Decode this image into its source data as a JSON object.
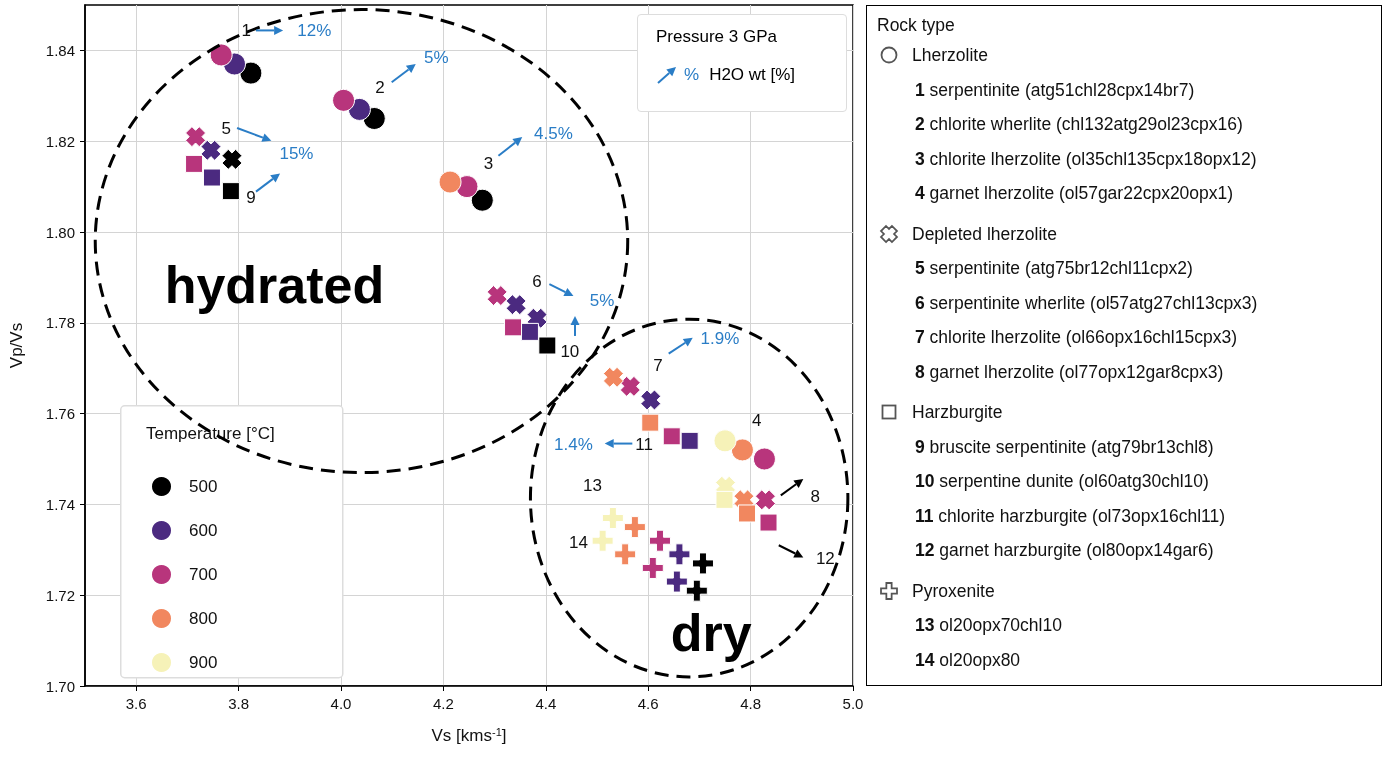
{
  "chart_data": {
    "type": "scatter",
    "xlabel": "Vs [kms$^{-1}$]",
    "ylabel": "Vp/Vs",
    "xlim": [
      3.5,
      5.0
    ],
    "xticks": [
      3.6,
      3.8,
      {
        "value": 4,
        "label": "4.0"
      },
      4.2,
      4.4,
      4.6,
      4.8,
      {
        "value": 5,
        "label": "5.0"
      }
    ],
    "ylim": [
      1.7,
      1.85
    ],
    "yticks": [
      {
        "value": 1.7,
        "label": "1.70"
      },
      1.72,
      1.74,
      1.76,
      1.78,
      {
        "value": 1.8,
        "label": "1.80"
      },
      1.82,
      1.84
    ],
    "grid": true,
    "legend": "bottom left",
    "legend_title": "Temperature [°C]",
    "series": [
      {
        "name": "500",
        "color": "#000000",
        "marker": "circle",
        "x": [
          3.824,
          4.065,
          4.276
        ],
        "values": [
          1.835,
          1.825,
          1.807
        ]
      },
      {
        "name": "600",
        "color": "#4b2a80",
        "marker": "circle",
        "x": [
          3.792,
          4.036
        ],
        "values": [
          1.837,
          1.827
        ]
      },
      {
        "name": "700",
        "color": "#b8357c",
        "marker": "circle",
        "x": [
          3.766,
          4.005,
          4.246,
          4.827
        ],
        "values": [
          1.839,
          1.829,
          1.81,
          1.75
        ]
      },
      {
        "name": "800",
        "color": "#f1875f",
        "marker": "circle",
        "x": [
          4.213,
          4.784
        ],
        "values": [
          1.811,
          1.752
        ]
      },
      {
        "name": "900",
        "color": "#f6f2b8",
        "marker": "circle",
        "x": [
          4.75
        ],
        "values": [
          1.754
        ]
      },
      {
        "color": "#000000",
        "marker": "x",
        "x": [
          3.787
        ],
        "values": [
          1.816
        ]
      },
      {
        "color": "#4b2a80",
        "marker": "x",
        "x": [
          3.746,
          4.342,
          4.383,
          4.605
        ],
        "values": [
          1.818,
          1.784,
          1.781,
          1.763
        ]
      },
      {
        "color": "#b8357c",
        "marker": "x",
        "x": [
          3.716,
          4.305,
          4.565,
          4.829
        ],
        "values": [
          1.821,
          1.786,
          1.766,
          1.741
        ]
      },
      {
        "color": "#f1875f",
        "marker": "x",
        "x": [
          4.532,
          4.787
        ],
        "values": [
          1.768,
          1.741
        ]
      },
      {
        "color": "#f6f2b8",
        "marker": "x",
        "x": [
          4.751
        ],
        "values": [
          1.744
        ]
      },
      {
        "color": "#000000",
        "marker": "square",
        "x": [
          3.785,
          4.403
        ],
        "values": [
          1.809,
          1.775
        ]
      },
      {
        "color": "#4b2a80",
        "marker": "square",
        "x": [
          3.748,
          4.369,
          4.681
        ],
        "values": [
          1.812,
          1.778,
          1.754
        ]
      },
      {
        "color": "#b8357c",
        "marker": "square",
        "x": [
          3.713,
          4.336,
          4.646,
          4.835
        ],
        "values": [
          1.815,
          1.779,
          1.755,
          1.736
        ]
      },
      {
        "color": "#f1875f",
        "marker": "square",
        "x": [
          4.604,
          4.793
        ],
        "values": [
          1.758,
          1.738
        ]
      },
      {
        "color": "#f6f2b8",
        "marker": "square",
        "x": [
          4.749
        ],
        "values": [
          1.741
        ]
      },
      {
        "color": "#000000",
        "marker": "cross",
        "x": [
          4.707,
          4.695
        ],
        "values": [
          1.727,
          1.721
        ]
      },
      {
        "color": "#4b2a80",
        "marker": "cross",
        "x": [
          4.661,
          4.656
        ],
        "values": [
          1.729,
          1.723
        ]
      },
      {
        "color": "#b8357c",
        "marker": "cross",
        "x": [
          4.623,
          4.609
        ],
        "values": [
          1.732,
          1.726
        ]
      },
      {
        "color": "#f1875f",
        "marker": "cross",
        "x": [
          4.574,
          4.555
        ],
        "values": [
          1.735,
          1.729
        ]
      },
      {
        "color": "#f6f2b8",
        "marker": "cross",
        "x": [
          4.531,
          4.511
        ],
        "values": [
          1.737,
          1.732
        ]
      }
    ],
    "annotations": [
      "Pressure 3 GPa",
      "%",
      "H2O wt [%]",
      "Rock type",
      "Lherzolite",
      "1 serpentinite (atg51chl28cpx14br7)",
      "2 chlorite wherlite (chl132atg29ol23cpx16)",
      "3 chlorite lherzolite (ol35chl135cpx18opx12)",
      "4 garnet lherzolite (ol57gar22cpx20opx1)",
      "Depleted lherzolite",
      "5 serpentinite (atg75br12chl11cpx2)",
      "6 serpentinite wherlite (ol57atg27chl13cpx3)",
      "7 chlorite lherzolite (ol66opx16chl15cpx3)",
      "8 garnet lherzolite (ol77opx12gar8cpx3)",
      "Harzburgite",
      "9 bruscite serpentinite (atg79br13chl8)",
      "10 serpentine dunite (ol60atg30chl10)",
      "11 chlorite harzburgite (ol73opx16chl11)",
      "12 garnet harzburgite (ol80opx14gar6)",
      "Pyroxenite",
      "13 ol20opx70chl10",
      "14 ol20opx80",
      "1",
      "12%",
      "2",
      "5%",
      "3",
      "4.5%",
      "5",
      "15%",
      "9",
      "6",
      "5%",
      "10",
      "7",
      "1.9%",
      "11",
      "1.4%",
      "4",
      "8",
      "12",
      "13",
      "14",
      "hydrated",
      "dry"
    ]
  }
}
